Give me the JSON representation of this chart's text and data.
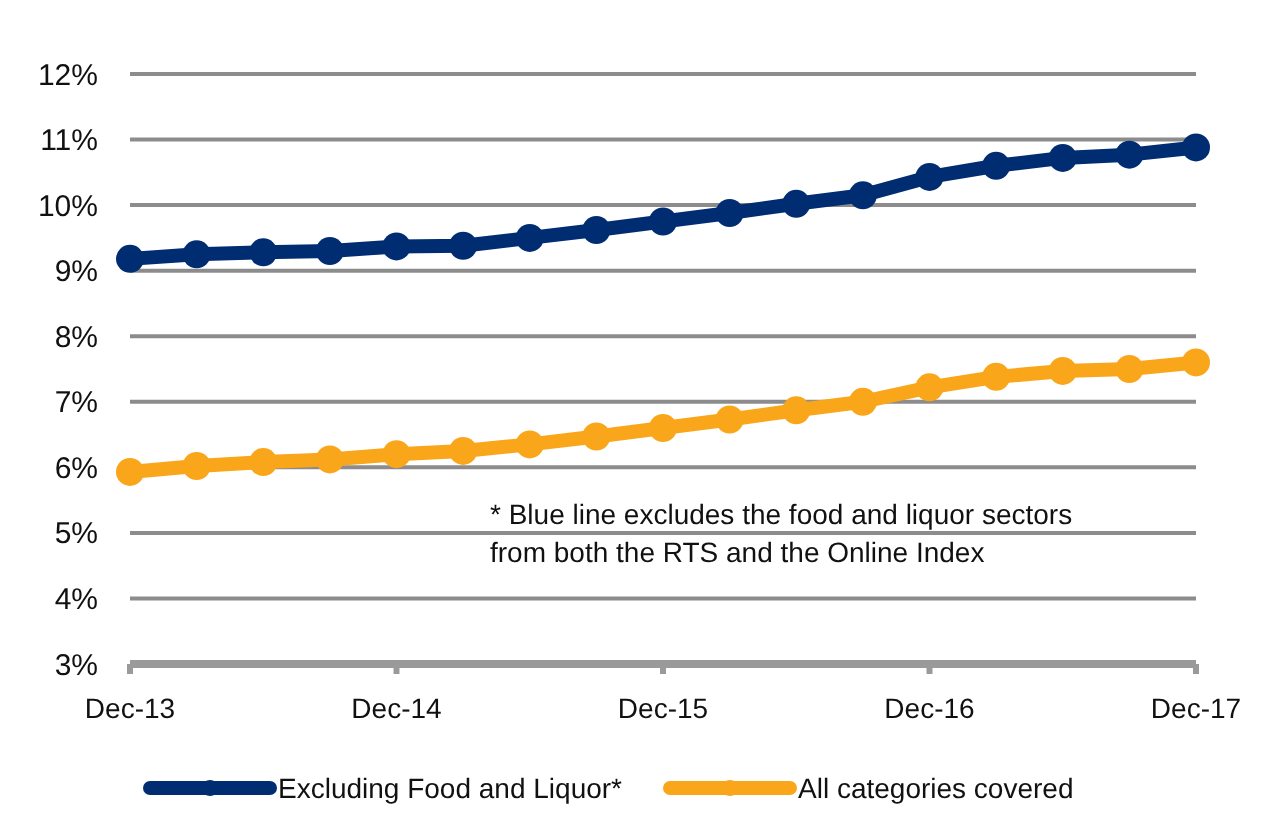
{
  "chart_data": {
    "type": "line",
    "categories": [
      "Dec-13",
      null,
      null,
      null,
      "Dec-14",
      null,
      null,
      null,
      "Dec-15",
      null,
      null,
      null,
      "Dec-16",
      null,
      null,
      null,
      "Dec-17"
    ],
    "series": [
      {
        "name": "Excluding Food and Liquor*",
        "color": "#002d72",
        "values": [
          9.18,
          9.25,
          9.28,
          9.3,
          9.37,
          9.38,
          9.5,
          9.62,
          9.75,
          9.88,
          10.02,
          10.15,
          10.43,
          10.6,
          10.72,
          10.77,
          10.88
        ]
      },
      {
        "name": "All categories covered",
        "color": "#f9a61a",
        "values": [
          5.93,
          6.02,
          6.08,
          6.12,
          6.2,
          6.25,
          6.35,
          6.47,
          6.6,
          6.73,
          6.87,
          7.0,
          7.22,
          7.38,
          7.47,
          7.5,
          7.6
        ]
      }
    ],
    "ylim": [
      3,
      12
    ],
    "yticks": [
      {
        "value": 3,
        "label": "3%"
      },
      {
        "value": 4,
        "label": "4%"
      },
      {
        "value": 5,
        "label": "5%"
      },
      {
        "value": 6,
        "label": "6%"
      },
      {
        "value": 7,
        "label": "7%"
      },
      {
        "value": 8,
        "label": "8%"
      },
      {
        "value": 9,
        "label": "9%"
      },
      {
        "value": 10,
        "label": "10%"
      },
      {
        "value": 11,
        "label": "11%"
      },
      {
        "value": 12,
        "label": "12%"
      }
    ],
    "grid": "y",
    "legend": "bottom",
    "marker": "circle",
    "line_style": "solid",
    "annotations": [
      "* Blue line excludes the food and liquor sectors\nfrom both the RTS and the Online Index"
    ]
  }
}
